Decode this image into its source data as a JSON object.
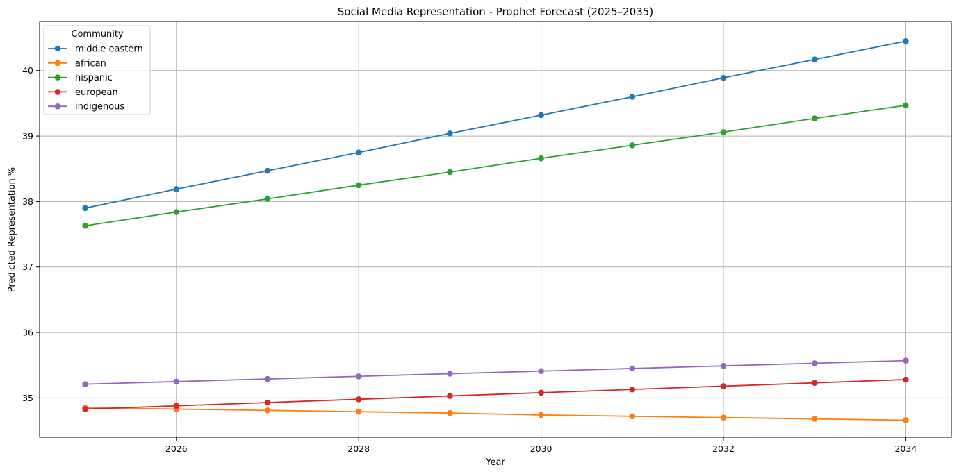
{
  "chart_data": {
    "type": "line",
    "title": "Social Media Representation - Prophet Forecast (2025–2035)",
    "xlabel": "Year",
    "ylabel": "Predicted Representation %",
    "xlim": [
      2024.5,
      2034.5
    ],
    "ylim": [
      34.4,
      40.75
    ],
    "x": [
      2025,
      2026,
      2027,
      2028,
      2029,
      2030,
      2031,
      2032,
      2033,
      2034
    ],
    "xticks": [
      2026,
      2028,
      2030,
      2032,
      2034
    ],
    "xtick_labels": [
      "2026",
      "2028",
      "2030",
      "2032",
      "2034"
    ],
    "yticks": [
      35,
      36,
      37,
      38,
      39,
      40
    ],
    "ytick_labels": [
      "35",
      "36",
      "37",
      "38",
      "39",
      "40"
    ],
    "grid": true,
    "legend": {
      "title": "Community",
      "placement": "upper-left"
    },
    "series": [
      {
        "name": "middle eastern",
        "color": "#1f77b4",
        "values": [
          37.9,
          38.19,
          38.47,
          38.75,
          39.04,
          39.32,
          39.6,
          39.89,
          40.17,
          40.45
        ]
      },
      {
        "name": "african",
        "color": "#ff7f0e",
        "values": [
          34.85,
          34.83,
          34.81,
          34.79,
          34.77,
          34.74,
          34.72,
          34.7,
          34.68,
          34.66
        ]
      },
      {
        "name": "hispanic",
        "color": "#2ca02c",
        "values": [
          37.63,
          37.84,
          38.04,
          38.25,
          38.45,
          38.66,
          38.86,
          39.06,
          39.27,
          39.47
        ]
      },
      {
        "name": "european",
        "color": "#d62728",
        "values": [
          34.83,
          34.88,
          34.93,
          34.98,
          35.03,
          35.08,
          35.13,
          35.18,
          35.23,
          35.28
        ]
      },
      {
        "name": "indigenous",
        "color": "#9467bd",
        "values": [
          35.21,
          35.25,
          35.29,
          35.33,
          35.37,
          35.41,
          35.45,
          35.49,
          35.53,
          35.57
        ]
      }
    ]
  }
}
